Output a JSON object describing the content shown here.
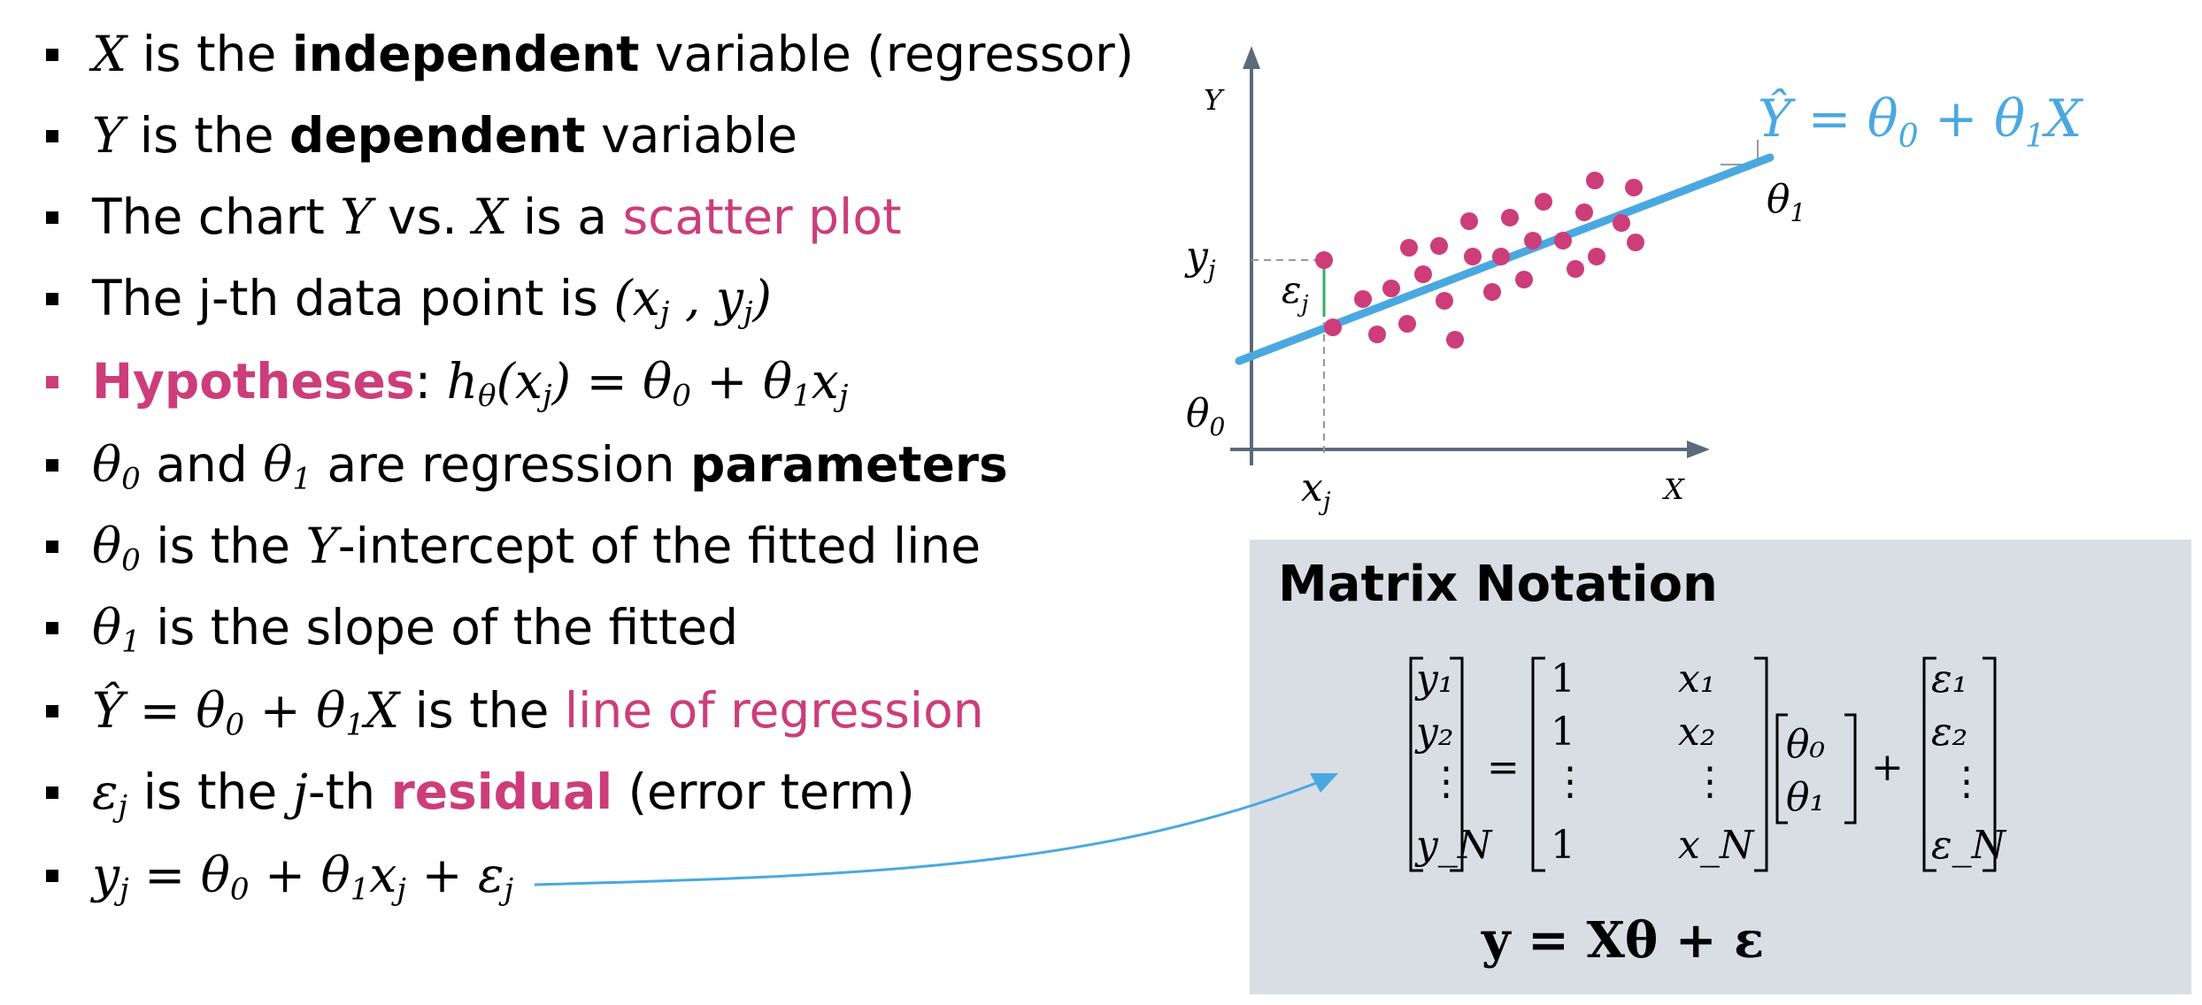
{
  "bullets": [
    {
      "pre_math": "X",
      "text_a": " is the ",
      "bold": "independent",
      "text_b": " variable (regressor)"
    },
    {
      "pre_math": "Y",
      "text_a": " is the ",
      "bold": "dependent",
      "text_b": " variable"
    },
    {
      "text_a": "The chart ",
      "m1": "Y",
      "text_b": " vs. ",
      "m2": "X",
      "text_c": " is a ",
      "pink": "scatter plot"
    },
    {
      "text_a": "The j-th data point is ",
      "math": "(x",
      "sub1": "j",
      "math2": " , y",
      "sub2": "j",
      "math3": ")"
    },
    {
      "pink_bold": "Hypotheses",
      "text_a": ": ",
      "math": "h",
      "sub1": "θ",
      "math2": "(x",
      "sub2": "j",
      "math3": ") = θ",
      "sub3": "0",
      "math4": " + θ",
      "sub4": "1",
      "math5": "x",
      "sub5": "j"
    },
    {
      "math": "θ",
      "sub1": "0",
      "text_a": " and ",
      "math2": "θ",
      "sub2": "1",
      "text_b": " are regression ",
      "bold": "parameters"
    },
    {
      "math": "θ",
      "sub1": "0",
      "text_a": " is the ",
      "m1": "Y",
      "text_b": "-intercept of the fitted line"
    },
    {
      "math": "θ",
      "sub1": "1",
      "text_a": "  is the slope of the fitted"
    },
    {
      "math": "Ŷ = θ",
      "sub1": "0",
      "math2": " + θ",
      "sub2": "1",
      "math3": "X",
      "text_a": " is the ",
      "pink": "line of regression"
    },
    {
      "math": "ε",
      "sub1": "j",
      "text_a": " is the ",
      "m1": "j",
      "text_b": "-th ",
      "pink_bold": "residual",
      "text_c": " (error term)"
    },
    {
      "math": "y",
      "sub1": "j",
      "math2": " = θ",
      "sub2": "0",
      "math3": " + θ",
      "sub3": "1",
      "math4": "x",
      "sub4": "j",
      "math5": " + ε",
      "sub5": "j"
    }
  ],
  "chart": {
    "y_axis": "Y",
    "x_axis": "X",
    "yj": "y",
    "yj_sub": "j",
    "xj": "x",
    "xj_sub": "j",
    "eps": "ε",
    "eps_sub": "j",
    "theta0": "θ",
    "theta0_sub": "0",
    "theta1": "θ",
    "theta1_sub": "1",
    "line_eq_a": "Ŷ = θ",
    "line_eq_sub0": "0",
    "line_eq_b": " + θ",
    "line_eq_sub1": "1",
    "line_eq_c": "X",
    "point_color": "#cc3d7a",
    "line_color": "#4aa8e0"
  },
  "matrix_box": {
    "title": "Matrix Notation",
    "y_vec": [
      "y₁",
      "y₂",
      "⋮",
      "y_N"
    ],
    "X_col1": [
      "1",
      "1",
      "⋮",
      "1"
    ],
    "X_col2": [
      "x₁",
      "x₂",
      "⋮",
      "x_N"
    ],
    "theta_vec": [
      "θ₀",
      "θ₁"
    ],
    "eps_vec": [
      "ε₁",
      "ε₂",
      "⋮",
      "ε_N"
    ],
    "equals": "=",
    "plus": "+",
    "compact": "y = Xθ + ε"
  }
}
